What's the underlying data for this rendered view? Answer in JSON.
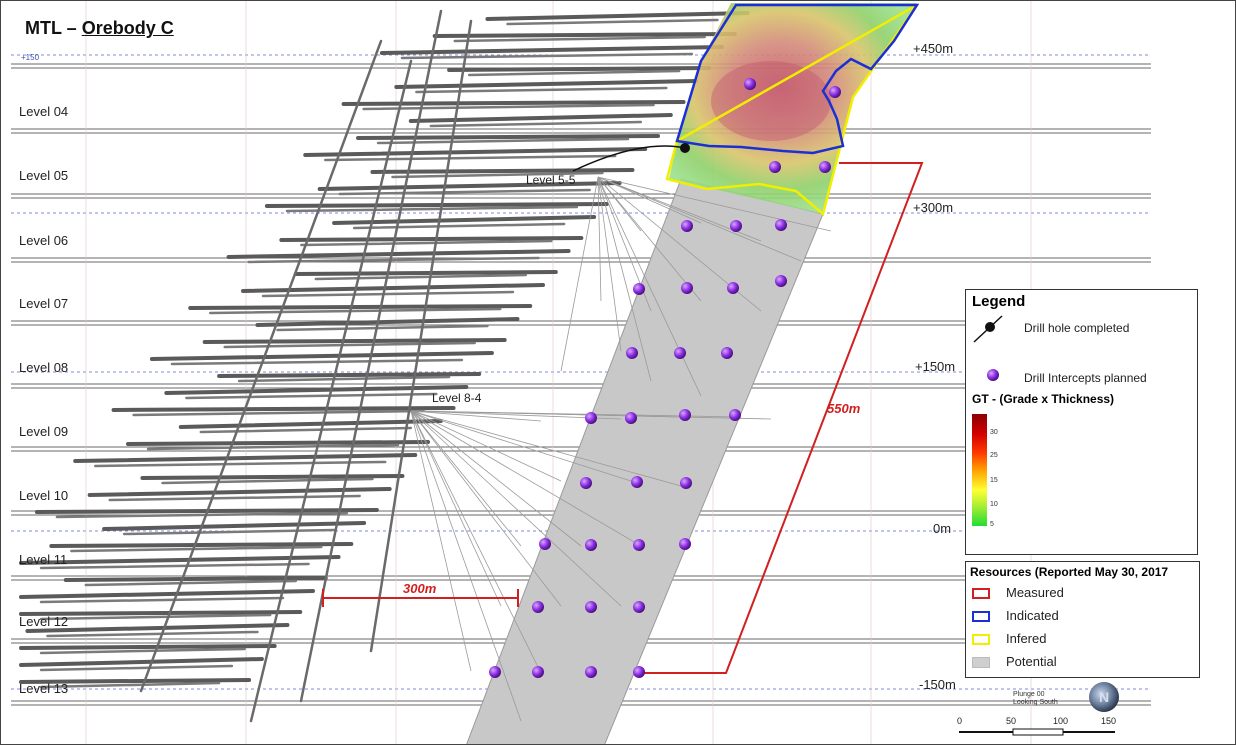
{
  "title": {
    "prefix": "MTL ",
    "dash": "–",
    "name": "Orebody C"
  },
  "levels": [
    "Level 04",
    "Level 05",
    "Level 06",
    "Level 07",
    "Level 08",
    "Level 09",
    "Level 10",
    "Level 11",
    "Level 12",
    "Level 13"
  ],
  "elevations": [
    "+450m",
    "+300m",
    "+150m",
    "0m",
    "-150m"
  ],
  "sublevels": [
    "Level 5-5",
    "Level 8-4"
  ],
  "dimensions": {
    "horizontal": "300m",
    "vertical": "550m"
  },
  "grid_top_label": "+150",
  "legend": {
    "title": "Legend",
    "drill_completed": "Drill hole completed",
    "drill_planned": "Drill Intercepts planned",
    "gt_title": "GT - (Grade x Thickness)",
    "gt_ramp": [
      "30",
      "25",
      "15",
      "10",
      "5"
    ]
  },
  "resources": {
    "title": "Resources (Reported May 30, 2017",
    "items": [
      {
        "label": "Measured",
        "color": "#d21f1f"
      },
      {
        "label": "Indicated",
        "color": "#1a2fd6"
      },
      {
        "label": "Infered",
        "color": "#f2ee00"
      },
      {
        "label": "Potential",
        "color": "#cfcfcf"
      }
    ]
  },
  "plunge": {
    "line1": "Plunge 00",
    "line2": "Looking South"
  },
  "scale_bar": [
    "0",
    "50",
    "100",
    "150"
  ],
  "colors": {
    "dim_red": "#d21f1f",
    "intercept": "#8a2be2",
    "potential": "#c8c8c8"
  }
}
